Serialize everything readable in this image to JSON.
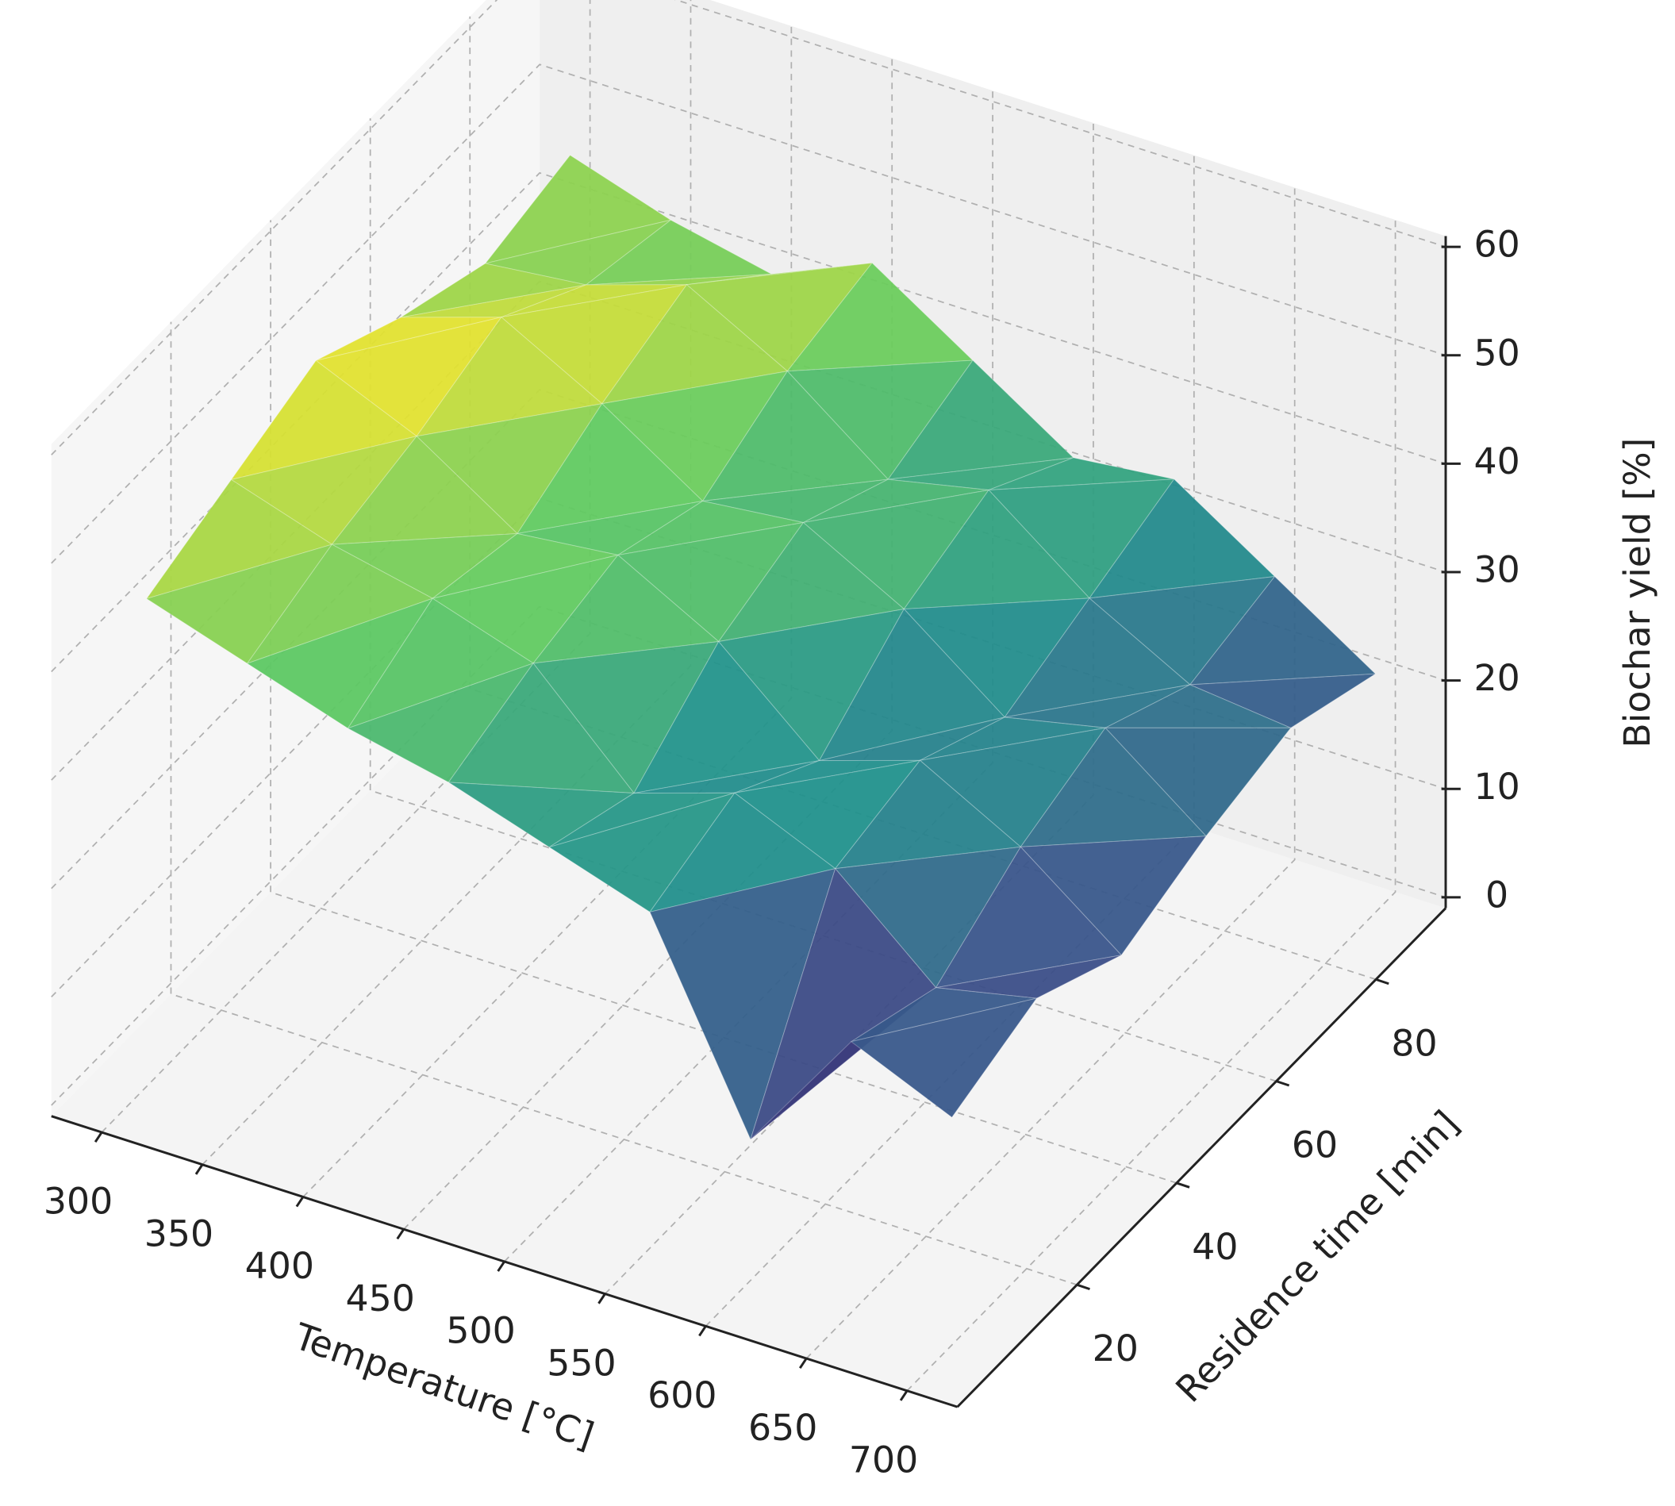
{
  "chart_data": {
    "type": "trisurf",
    "xlabel": "Temperature [°C]",
    "ylabel": "Residence time [min]",
    "zlabel": "Biochar yield [%]",
    "xlim": [
      275,
      725
    ],
    "ylim": [
      -4,
      94
    ],
    "zlim": [
      -1,
      61
    ],
    "xticks": [
      300,
      350,
      400,
      450,
      500,
      550,
      600,
      650,
      700
    ],
    "yticks": [
      20,
      40,
      60,
      80
    ],
    "zticks": [
      0,
      10,
      20,
      30,
      40,
      50,
      60
    ],
    "colormap": "viridis",
    "grid": true,
    "x": [
      300,
      300,
      300,
      300,
      300,
      300,
      350,
      350,
      350,
      350,
      350,
      350,
      400,
      400,
      400,
      400,
      400,
      400,
      450,
      450,
      450,
      450,
      450,
      450,
      500,
      500,
      500,
      500,
      500,
      500,
      550,
      550,
      550,
      550,
      550,
      550,
      600,
      600,
      600,
      600,
      600,
      600,
      650,
      650,
      650,
      650,
      650,
      650,
      700,
      700,
      700,
      700,
      700,
      700
    ],
    "y": [
      5,
      22,
      39,
      56,
      73,
      90,
      5,
      22,
      39,
      56,
      73,
      90,
      5,
      22,
      39,
      56,
      73,
      90,
      5,
      22,
      39,
      56,
      73,
      90,
      5,
      22,
      39,
      56,
      73,
      90,
      5,
      22,
      39,
      56,
      73,
      90,
      5,
      22,
      39,
      56,
      73,
      90,
      5,
      22,
      39,
      56,
      73,
      90,
      5,
      22,
      39,
      56,
      73,
      90
    ],
    "z": [
      44,
      47,
      50,
      46,
      43,
      45,
      41,
      44,
      46,
      49,
      44,
      42,
      38,
      42,
      40,
      44,
      47,
      40,
      36,
      39,
      41,
      38,
      42,
      44,
      33,
      30,
      36,
      39,
      35,
      38,
      30,
      33,
      28,
      34,
      37,
      32,
      12,
      29,
      31,
      27,
      30,
      33,
      24,
      21,
      26,
      29,
      25,
      27,
      20,
      23,
      19,
      22,
      24,
      21
    ]
  }
}
